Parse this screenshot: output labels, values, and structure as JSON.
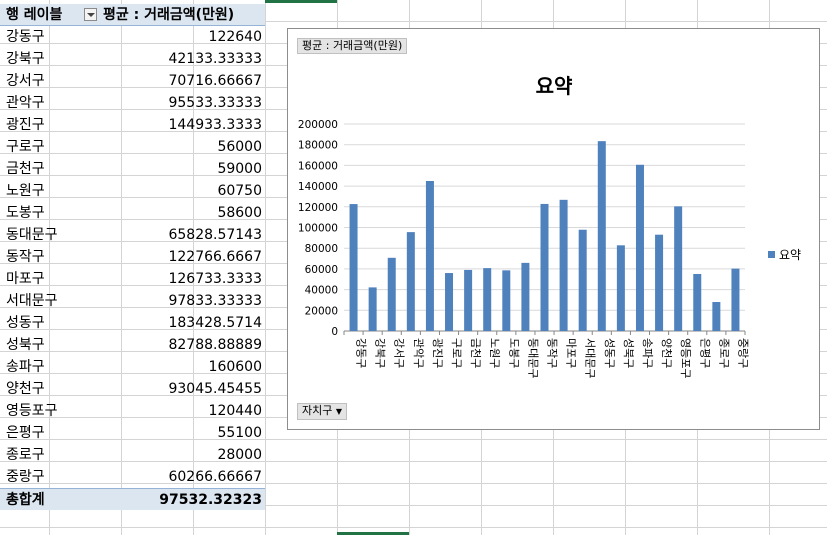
{
  "pivot": {
    "row_label_header": "행 레이블",
    "value_header": "평균 : 거래금액(만원)",
    "rows": [
      {
        "label": "강동구",
        "value": "122640"
      },
      {
        "label": "강북구",
        "value": "42133.33333"
      },
      {
        "label": "강서구",
        "value": "70716.66667"
      },
      {
        "label": "관악구",
        "value": "95533.33333"
      },
      {
        "label": "광진구",
        "value": "144933.3333"
      },
      {
        "label": "구로구",
        "value": "56000"
      },
      {
        "label": "금천구",
        "value": "59000"
      },
      {
        "label": "노원구",
        "value": "60750"
      },
      {
        "label": "도봉구",
        "value": "58600"
      },
      {
        "label": "동대문구",
        "value": "65828.57143"
      },
      {
        "label": "동작구",
        "value": "122766.6667"
      },
      {
        "label": "마포구",
        "value": "126733.3333"
      },
      {
        "label": "서대문구",
        "value": "97833.33333"
      },
      {
        "label": "성동구",
        "value": "183428.5714"
      },
      {
        "label": "성북구",
        "value": "82788.88889"
      },
      {
        "label": "송파구",
        "value": "160600"
      },
      {
        "label": "양천구",
        "value": "93045.45455"
      },
      {
        "label": "영등포구",
        "value": "120440"
      },
      {
        "label": "은평구",
        "value": "55100"
      },
      {
        "label": "종로구",
        "value": "28000"
      },
      {
        "label": "중랑구",
        "value": "60266.66667"
      }
    ],
    "total_label": "총합계",
    "total_value": "97532.32323"
  },
  "chart_field_button": "평균 : 거래금액(만원)",
  "chart_axis_field_button": "자치구",
  "chart_data": {
    "type": "bar",
    "title": "요약",
    "categories": [
      "강동구",
      "강북구",
      "강서구",
      "관악구",
      "광진구",
      "구로구",
      "금천구",
      "노원구",
      "도봉구",
      "동대문구",
      "동작구",
      "마포구",
      "서대문구",
      "성동구",
      "성북구",
      "송파구",
      "양천구",
      "영등포구",
      "은평구",
      "종로구",
      "중랑구"
    ],
    "series": [
      {
        "name": "요약",
        "values": [
          122640,
          42133.33333,
          70716.66667,
          95533.33333,
          144933.3333,
          56000,
          59000,
          60750,
          58600,
          65828.57143,
          122766.6667,
          126733.3333,
          97833.33333,
          183428.5714,
          82788.88889,
          160600,
          93045.45455,
          120440,
          55100,
          28000,
          60266.66667
        ],
        "color": "#4f81bd"
      }
    ],
    "ylim": [
      0,
      200000
    ],
    "yticks": [
      0,
      20000,
      40000,
      60000,
      80000,
      100000,
      120000,
      140000,
      160000,
      180000,
      200000
    ],
    "grid": true,
    "legend": "right"
  }
}
